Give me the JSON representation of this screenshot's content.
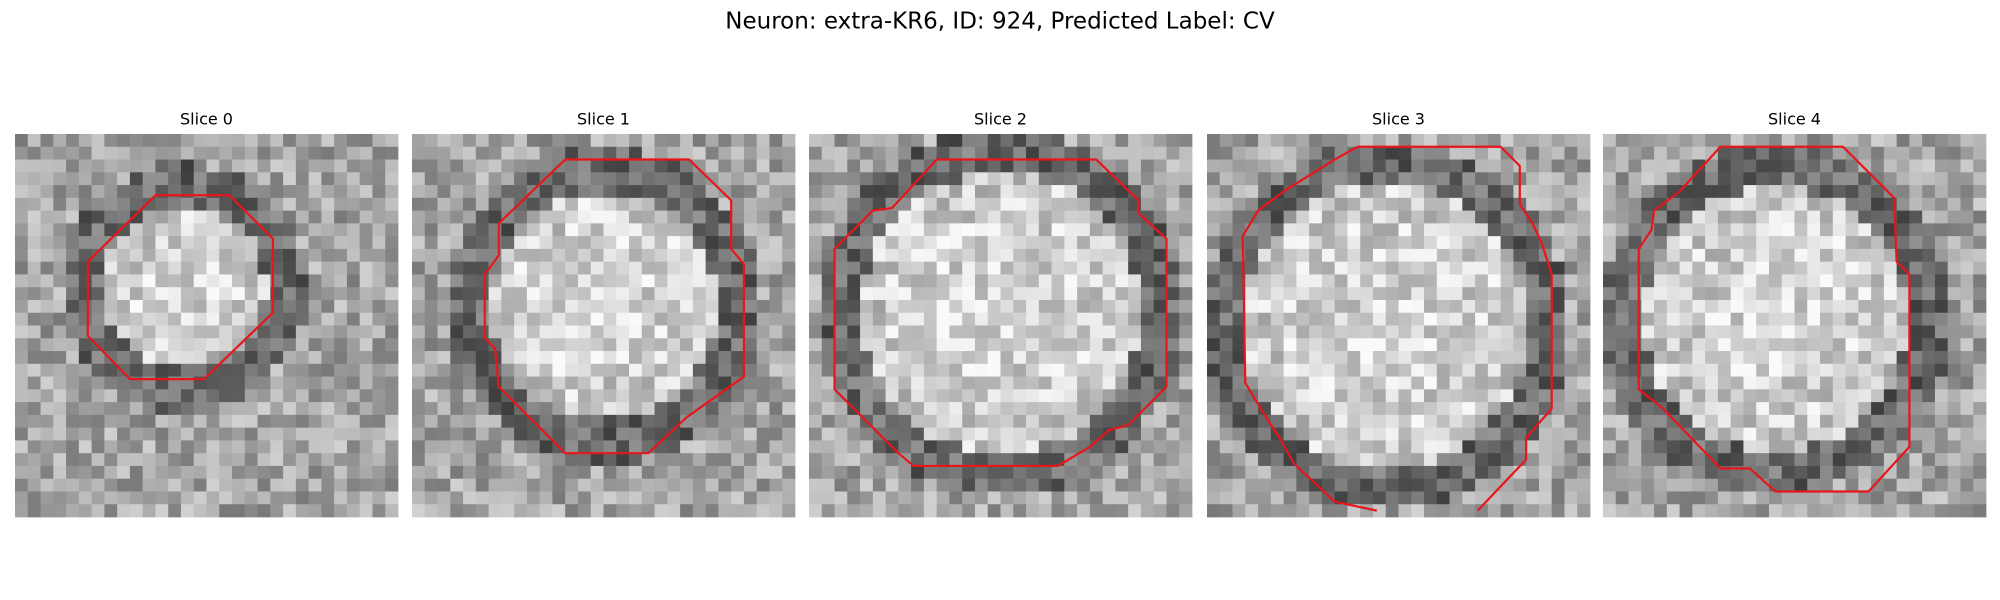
{
  "title": "Neuron: extra-KR6, ID: 924, Predicted Label: CV",
  "panels": [
    {
      "title": "Slice 0"
    },
    {
      "title": "Slice 1"
    },
    {
      "title": "Slice 2"
    },
    {
      "title": "Slice 3"
    },
    {
      "title": "Slice 4"
    }
  ]
}
